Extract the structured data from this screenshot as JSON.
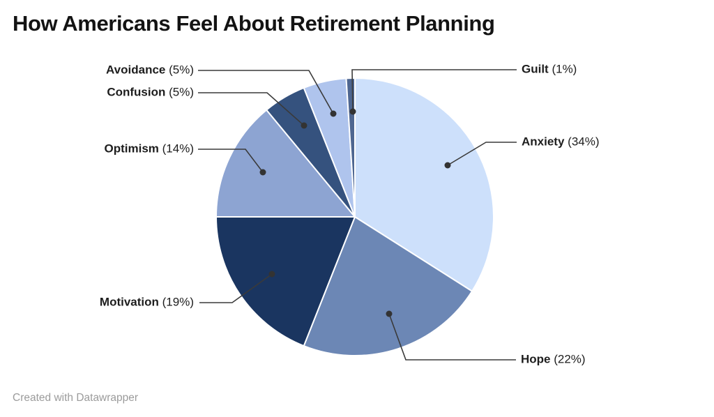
{
  "title": "How Americans Feel About Retirement Planning",
  "footer": {
    "credit": "Created with Datawrapper"
  },
  "chart_data": {
    "type": "pie",
    "title": "How Americans Feel About Retirement Planning",
    "unit": "%",
    "direction": "clockwise",
    "start_angle_deg": 0,
    "legend": "none",
    "label_style": "outside-with-leader-lines",
    "categories": [
      "Anxiety",
      "Hope",
      "Motivation",
      "Optimism",
      "Confusion",
      "Avoidance",
      "Guilt"
    ],
    "values": [
      34,
      22,
      19,
      14,
      5,
      5,
      1
    ],
    "slices": [
      {
        "label": "Anxiety",
        "value": 34,
        "display": "(34%)",
        "color": "#CDE0FB"
      },
      {
        "label": "Hope",
        "value": 22,
        "display": "(22%)",
        "color": "#6C87B5"
      },
      {
        "label": "Motivation",
        "value": 19,
        "display": "(19%)",
        "color": "#1A3560"
      },
      {
        "label": "Optimism",
        "value": 14,
        "display": "(14%)",
        "color": "#8DA4D2"
      },
      {
        "label": "Confusion",
        "value": 5,
        "display": "(5%)",
        "color": "#35527E"
      },
      {
        "label": "Avoidance",
        "value": 5,
        "display": "(5%)",
        "color": "#AFC4ED"
      },
      {
        "label": "Guilt",
        "value": 1,
        "display": "(1%)",
        "color": "#4E6690"
      }
    ],
    "colors": {
      "leader_line": "#3a3a3a",
      "leader_dot": "#333333",
      "slice_stroke": "#ffffff",
      "title_text": "#131313",
      "label_text": "#1d1d1d",
      "credit_text": "#9b9b9b"
    }
  }
}
